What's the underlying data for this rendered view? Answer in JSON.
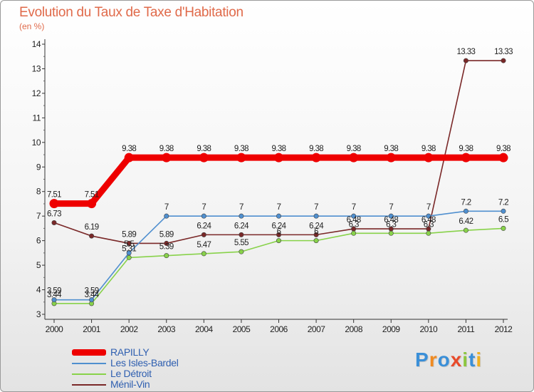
{
  "chart_data": {
    "type": "line",
    "title": "Evolution du Taux de Taxe d'Habitation",
    "subtitle": "(en %)",
    "xlabel": "",
    "ylabel": "",
    "ylim": [
      3,
      14
    ],
    "y_ticks": [
      "3",
      "4",
      "5",
      "6",
      "7",
      "8",
      "9",
      "10",
      "11",
      "12",
      "13",
      "14"
    ],
    "categories": [
      "2000",
      "2001",
      "2002",
      "2003",
      "2004",
      "2005",
      "2006",
      "2007",
      "2008",
      "2009",
      "2010",
      "2011",
      "2012"
    ],
    "grid": false,
    "legend_position": "bottom-left",
    "series": [
      {
        "name": "Ménil-Vin",
        "color": "#7a2828",
        "values": [
          6.73,
          6.19,
          5.89,
          5.89,
          6.24,
          6.24,
          6.24,
          6.24,
          6.48,
          6.48,
          6.48,
          13.33,
          13.33
        ],
        "labels": [
          "6.73",
          "6.19",
          "5.89",
          "5.89",
          "6.24",
          "6.24",
          "6.24",
          "6.24",
          "6.48",
          "6.48",
          "6.48",
          "13.33",
          "13.33"
        ]
      },
      {
        "name": "Le Détroit",
        "color": "#88d24a",
        "values": [
          3.44,
          3.44,
          5.31,
          5.39,
          5.47,
          5.55,
          6,
          6,
          6.3,
          6.3,
          6.3,
          6.42,
          6.5
        ],
        "labels": [
          "3.44",
          "3.44",
          "5.31",
          "5.39",
          "5.47",
          "5.55",
          "6",
          "6",
          "6.3",
          "6.3",
          "6.3",
          "6.42",
          "6.5"
        ]
      },
      {
        "name": "Les Isles-Bardel",
        "color": "#4f8fcf",
        "values": [
          3.59,
          3.59,
          5.5,
          7,
          7,
          7,
          7,
          7,
          7,
          7,
          7,
          7.2,
          7.2
        ],
        "labels": [
          "3.59",
          "3.59",
          "5.5",
          "7",
          "7",
          "7",
          "7",
          "7",
          "7",
          "7",
          "7",
          "7.2",
          "7.2"
        ]
      },
      {
        "name": "RAPILLY",
        "color": "#ee0000",
        "values": [
          7.51,
          7.51,
          9.38,
          9.38,
          9.38,
          9.38,
          9.38,
          9.38,
          9.38,
          9.38,
          9.38,
          9.38,
          9.38
        ],
        "labels": [
          "7.51",
          "7.51",
          "9.38",
          "9.38",
          "9.38",
          "9.38",
          "9.38",
          "9.38",
          "9.38",
          "9.38",
          "9.38",
          "9.38",
          "9.38"
        ]
      }
    ],
    "legend": [
      {
        "name": "RAPILLY",
        "color": "#ee0000"
      },
      {
        "name": "Les Isles-Bardel",
        "color": "#4f8fcf"
      },
      {
        "name": "Le Détroit",
        "color": "#88d24a"
      },
      {
        "name": "Ménil-Vin",
        "color": "#7a2828"
      }
    ]
  },
  "brand": {
    "letters": [
      "P",
      "r",
      "o",
      "x",
      "i",
      "t",
      "i"
    ],
    "colors": [
      "#3a8fd8",
      "#f08a20",
      "#3a8fd8",
      "#e84a2a",
      "#8cc63f",
      "#3a8fd8",
      "#f0b020"
    ]
  }
}
